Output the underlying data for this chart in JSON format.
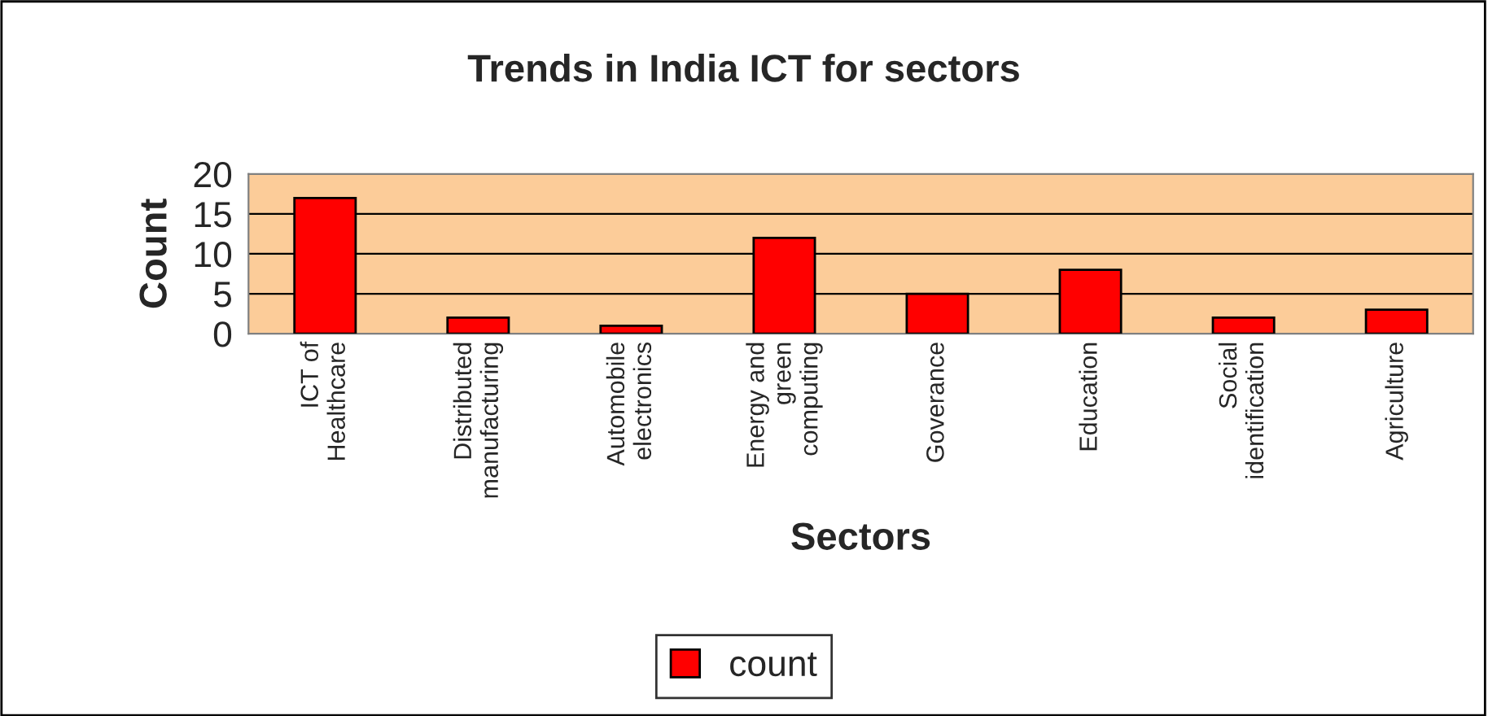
{
  "chart_data": {
    "type": "bar",
    "title": "Trends in India ICT for sectors",
    "xlabel": "Sectors",
    "ylabel": "Count",
    "categories": [
      "ICT of\nHealthcare",
      "Distributed\nmanufacturing",
      "Automobile\nelectronics",
      "Energy and\ngreen\ncomputing",
      "Goverance",
      "Education",
      "Social\nidentification",
      "Agriculture"
    ],
    "series": [
      {
        "name": "count",
        "color": "#ff0000",
        "values": [
          17,
          2,
          1,
          12,
          5,
          8,
          2,
          3
        ]
      }
    ],
    "ylim": [
      0,
      20
    ],
    "yticks": [
      0,
      5,
      10,
      15,
      20
    ],
    "grid": "y",
    "legend": "bottom"
  }
}
